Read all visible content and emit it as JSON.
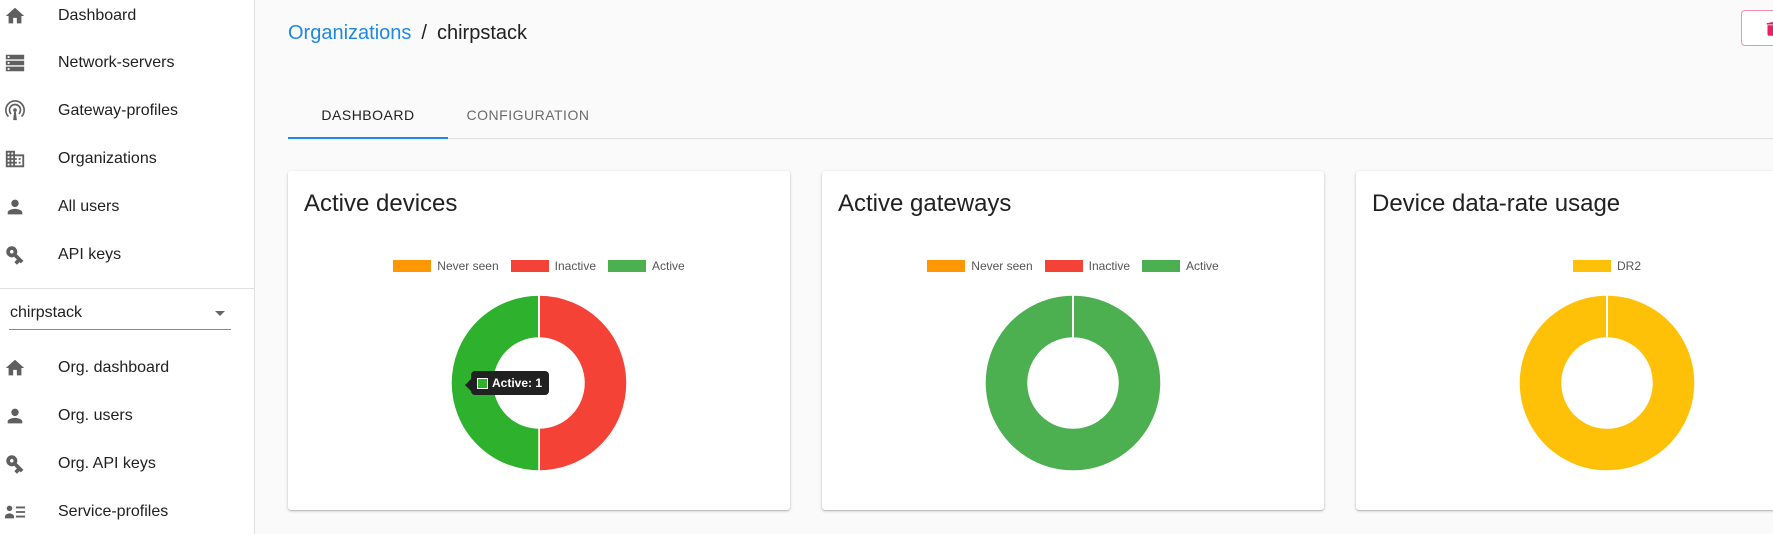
{
  "sidebar": {
    "items": [
      {
        "label": "Dashboard",
        "icon": "home-icon"
      },
      {
        "label": "Network-servers",
        "icon": "servers-icon"
      },
      {
        "label": "Gateway-profiles",
        "icon": "radio-tower-icon"
      },
      {
        "label": "Organizations",
        "icon": "building-icon"
      },
      {
        "label": "All users",
        "icon": "user-icon"
      },
      {
        "label": "API keys",
        "icon": "key-icon"
      }
    ],
    "org_select": {
      "value": "chirpstack"
    },
    "org_items": [
      {
        "label": "Org. dashboard",
        "icon": "home-icon"
      },
      {
        "label": "Org. users",
        "icon": "user-icon"
      },
      {
        "label": "Org. API keys",
        "icon": "key-icon"
      },
      {
        "label": "Service-profiles",
        "icon": "list-icon"
      }
    ]
  },
  "breadcrumb": {
    "parent": "Organizations",
    "separator": "/",
    "current": "chirpstack"
  },
  "tabs": [
    {
      "label": "DASHBOARD",
      "active": true
    },
    {
      "label": "CONFIGURATION",
      "active": false
    }
  ],
  "colors": {
    "accent": "#1e88e5",
    "never_seen": "#ff9800",
    "inactive": "#f44336",
    "active": "#4caf50",
    "active_hover": "#2eb22e",
    "dr2": "#ffc107",
    "delete": "#e91e63"
  },
  "cards": [
    {
      "title": "Active devices",
      "tooltip": "Active: 1",
      "chart_data": {
        "type": "pie",
        "title": "Active devices",
        "legend": [
          "Never seen",
          "Inactive",
          "Active"
        ],
        "values": [
          0,
          1,
          1
        ],
        "legend_position": "top"
      }
    },
    {
      "title": "Active gateways",
      "chart_data": {
        "type": "pie",
        "title": "Active gateways",
        "legend": [
          "Never seen",
          "Inactive",
          "Active"
        ],
        "values": [
          0,
          0,
          1
        ],
        "legend_position": "top"
      }
    },
    {
      "title": "Device data-rate usage",
      "chart_data": {
        "type": "pie",
        "title": "Device data-rate usage",
        "legend": [
          "DR2"
        ],
        "values": [
          1
        ],
        "legend_position": "top"
      }
    }
  ]
}
